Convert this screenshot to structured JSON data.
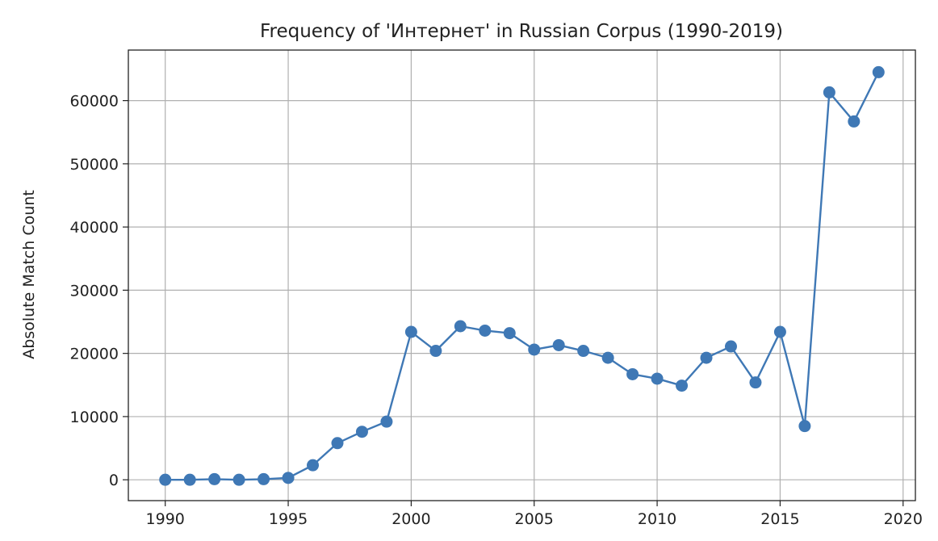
{
  "chart_data": {
    "type": "line",
    "title": "Frequency of 'Интернет' in Russian Corpus (1990-2019)",
    "xlabel": "",
    "ylabel": "Absolute Match Count",
    "xlim": [
      1988.5,
      2020.5
    ],
    "ylim": [
      -3300,
      68000
    ],
    "xticks": [
      1990,
      1995,
      2000,
      2005,
      2010,
      2015,
      2020
    ],
    "yticks": [
      0,
      10000,
      20000,
      30000,
      40000,
      50000,
      60000
    ],
    "grid": true,
    "color": "#3f78b5",
    "x": [
      1990,
      1991,
      1992,
      1993,
      1994,
      1995,
      1996,
      1997,
      1998,
      1999,
      2000,
      2001,
      2002,
      2003,
      2004,
      2005,
      2006,
      2007,
      2008,
      2009,
      2010,
      2011,
      2012,
      2013,
      2014,
      2015,
      2016,
      2017,
      2018,
      2019
    ],
    "values": [
      0,
      0,
      100,
      0,
      100,
      300,
      2300,
      5800,
      7600,
      9200,
      23400,
      20400,
      24300,
      23600,
      23200,
      20600,
      21300,
      20400,
      19300,
      16700,
      16000,
      14900,
      19300,
      21100,
      15400,
      23400,
      8500,
      61300,
      56700,
      64500
    ]
  }
}
